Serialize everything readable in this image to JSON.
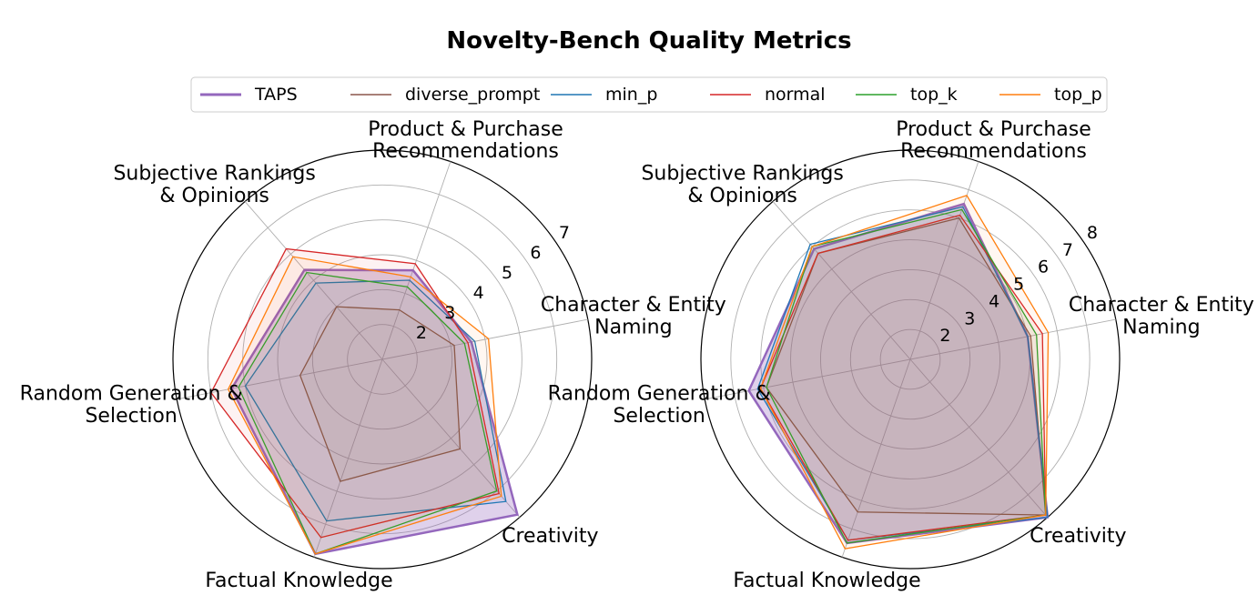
{
  "chart_data": [
    {
      "type": "radar",
      "title": "Novelty-Bench Quality Metrics",
      "categories": [
        "Character & Entity\nNaming",
        "Product & Purchase\nRecommendations",
        "Subjective Rankings\n& Opinions",
        "Random Generation &\nSelection",
        "Factual Knowledge",
        "Creativity"
      ],
      "ylim": [
        1,
        7
      ],
      "yticks": [
        2,
        3,
        4,
        5,
        6,
        7
      ],
      "grid": true,
      "series": [
        {
          "name": "TAPS",
          "color": "#9467bd",
          "values": [
            3.6,
            3.7,
            4.4,
            5.4,
            6.9,
            6.9
          ]
        },
        {
          "name": "diverse_prompt",
          "color": "#8c564b",
          "values": [
            3.1,
            2.5,
            3.0,
            3.4,
            4.7,
            4.4
          ]
        },
        {
          "name": "min_p",
          "color": "#1f77b4",
          "values": [
            3.7,
            3.4,
            3.9,
            5.0,
            5.9,
            6.4
          ]
        },
        {
          "name": "normal",
          "color": "#d62728",
          "values": [
            3.5,
            3.9,
            5.2,
            6.0,
            6.4,
            6.1
          ]
        },
        {
          "name": "top_k",
          "color": "#2ca02c",
          "values": [
            3.4,
            3.2,
            4.3,
            5.2,
            6.9,
            6.0
          ]
        },
        {
          "name": "top_p",
          "color": "#ff7f0e",
          "values": [
            4.1,
            3.5,
            4.9,
            5.5,
            6.9,
            6.2
          ]
        }
      ]
    },
    {
      "type": "radar",
      "categories": [
        "Character & Entity\nNaming",
        "Product & Purchase\nRecommendations",
        "Subjective Rankings\n& Opinions",
        "Random Generation &\nSelection",
        "Factual Knowledge",
        "Creativity"
      ],
      "ylim": [
        1,
        8
      ],
      "yticks": [
        2,
        3,
        4,
        5,
        6,
        7,
        8
      ],
      "grid": true,
      "series": [
        {
          "color": "#9467bd",
          "values": [
            5.0,
            6.5,
            5.9,
            6.5,
            7.5,
            8.0
          ]
        },
        {
          "color": "#8c564b",
          "values": [
            5.1,
            6.0,
            5.7,
            5.9,
            6.4,
            7.9
          ]
        },
        {
          "color": "#1f77b4",
          "values": [
            5.0,
            6.4,
            6.1,
            6.2,
            7.4,
            8.0
          ]
        },
        {
          "color": "#d62728",
          "values": [
            5.5,
            6.1,
            5.7,
            6.1,
            7.4,
            7.9
          ]
        },
        {
          "color": "#2ca02c",
          "values": [
            5.3,
            6.3,
            6.0,
            5.9,
            7.5,
            7.9
          ]
        },
        {
          "color": "#ff7f0e",
          "values": [
            5.7,
            6.8,
            6.0,
            6.1,
            7.7,
            7.9
          ]
        }
      ]
    }
  ]
}
